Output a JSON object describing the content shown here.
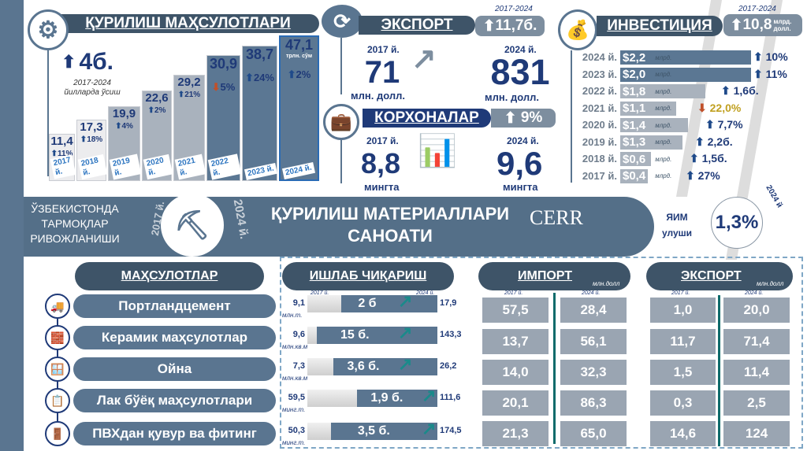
{
  "construction": {
    "title": "ҚУРИЛИШ МАҲСУЛОТЛАРИ",
    "growth": "4б.",
    "growth_period": "2017-2024",
    "growth_caption": "йилларда ўсиш",
    "unit": "трлн. сўм",
    "years": [
      {
        "year": "2017 й.",
        "value": "11,4",
        "change": "11%",
        "dir": "up"
      },
      {
        "year": "2018 й.",
        "value": "17,3",
        "change": "18%",
        "dir": "up"
      },
      {
        "year": "2019 й.",
        "value": "19,9",
        "change": "4%",
        "dir": "up"
      },
      {
        "year": "2020 й.",
        "value": "22,6",
        "change": "2%",
        "dir": "up"
      },
      {
        "year": "2021 й.",
        "value": "29,2",
        "change": "21%",
        "dir": "up"
      },
      {
        "year": "2022 й.",
        "value": "30,9",
        "change": "5%",
        "dir": "down"
      },
      {
        "year": "2023 й.",
        "value": "38,7",
        "change": "24%",
        "dir": "up"
      },
      {
        "year": "2024 й.",
        "value": "47,1",
        "change": "2%",
        "dir": "up"
      }
    ]
  },
  "export": {
    "title": "ЭКСПОРТ",
    "period": "2017-2024",
    "growth": "11,7б.",
    "y2017_label": "2017 й.",
    "y2017_value": "71",
    "y2024_label": "2024 й.",
    "y2024_value": "831",
    "unit": "млн. долл."
  },
  "enterprises": {
    "title": "КОРХОНАЛАР",
    "growth": "9%",
    "y2017_label": "2017 й.",
    "y2017_value": "8,8",
    "y2024_label": "2024 й.",
    "y2024_value": "9,6",
    "unit": "мингта"
  },
  "investment": {
    "title": "ИНВЕСТИЦИЯ",
    "period": "2017-2024",
    "growth": "10,8",
    "growth_unit": "млрд. долл.",
    "unit": "млрд.",
    "rows": [
      {
        "year": "2024 й.",
        "value": "$2,2",
        "change": "10%",
        "dir": "up"
      },
      {
        "year": "2023 й.",
        "value": "$2,0",
        "change": "11%",
        "dir": "up"
      },
      {
        "year": "2022 й.",
        "value": "$1,8",
        "change": "1,6б.",
        "dir": "up"
      },
      {
        "year": "2021 й.",
        "value": "$1,1",
        "change": "22,0%",
        "dir": "down"
      },
      {
        "year": "2020 й.",
        "value": "$1,4",
        "change": "7,7%",
        "dir": "up"
      },
      {
        "year": "2019 й.",
        "value": "$1,3",
        "change": "2,2б.",
        "dir": "up"
      },
      {
        "year": "2018 й.",
        "value": "$0,6",
        "change": "1,5б.",
        "dir": "up"
      },
      {
        "year": "2017 й.",
        "value": "$0,4",
        "change": "27%",
        "dir": "up"
      }
    ]
  },
  "banner": {
    "left": "ЎЗБЕКИСТОНДА ТАРМОҚЛАР РИВОЖЛАНИШИ",
    "year_from": "2017 й.",
    "year_to": "2024 й.",
    "title_line1": "ҚУРИЛИШ МАТЕРИАЛЛАРИ",
    "title_line2": "САНОАТИ",
    "logo": "CERR",
    "gdp_label1": "ЯИМ",
    "gdp_label2": "улуши",
    "gdp_value": "1,3%",
    "gdp_year": "2024 й"
  },
  "table": {
    "headers": {
      "products": "МАҲСУЛОТЛАР",
      "production": "ИШЛАБ ЧИҚАРИШ",
      "import": "ИМПОРТ",
      "export": "ЭКСПОРТ",
      "trade_unit": "млн.долл",
      "y2017": "2017 й.",
      "y2024": "2024 й."
    },
    "rows": [
      {
        "product": "Портландцемент",
        "icon": "truck-icon",
        "prod_2017": "9,1",
        "prod_unit": "млн.т.",
        "prod_mult": "2 б",
        "prod_2024": "17,9",
        "imp_2017": "57,5",
        "imp_2024": "28,4",
        "exp_2017": "1,0",
        "exp_2024": "20,0"
      },
      {
        "product": "Керамик маҳсулотлар",
        "icon": "brick-wall-icon",
        "prod_2017": "9,6",
        "prod_unit": "млн.кв.м",
        "prod_mult": "15 б.",
        "prod_2024": "143,3",
        "imp_2017": "13,7",
        "imp_2024": "56,1",
        "exp_2017": "11,7",
        "exp_2024": "71,4"
      },
      {
        "product": "Ойна",
        "icon": "window-icon",
        "prod_2017": "7,3",
        "prod_unit": "млн.кв.м",
        "prod_mult": "3,6 б.",
        "prod_2024": "26,2",
        "imp_2017": "14,0",
        "imp_2024": "32,3",
        "exp_2017": "1,5",
        "exp_2024": "11,4"
      },
      {
        "product": "Лак бўёқ маҳсулотлари",
        "icon": "paint-icon",
        "prod_2017": "59,5",
        "prod_unit": "минг.т.",
        "prod_mult": "1,9 б.",
        "prod_2024": "111,6",
        "imp_2017": "20,1",
        "imp_2024": "86,3",
        "exp_2017": "0,3",
        "exp_2024": "2,5"
      },
      {
        "product": "ПВХдан қувур ва фитинг",
        "icon": "pipe-icon",
        "prod_2017": "50,3",
        "prod_unit": "минг.т.",
        "prod_mult": "3,5 б.",
        "prod_2024": "174,5",
        "imp_2017": "21,3",
        "imp_2024": "65,0",
        "exp_2017": "14,6",
        "exp_2024": "124"
      }
    ]
  },
  "colors": {
    "dark": "#3e5468",
    "mid": "#5a7590",
    "gray": "#9aa5b2",
    "navy": "#1f3a78",
    "down": "#c0502a"
  }
}
